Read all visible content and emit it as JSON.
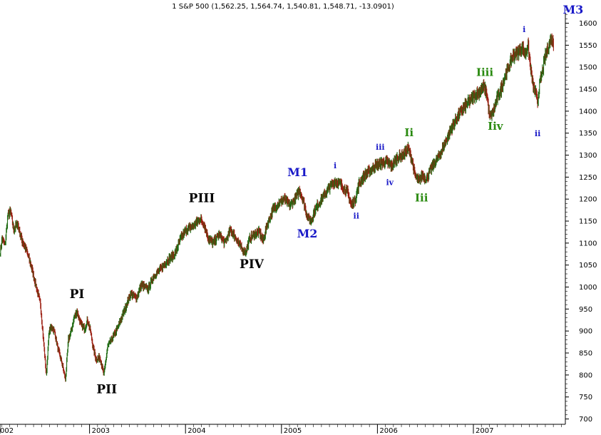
{
  "chart_data": {
    "type": "candlestick",
    "title": "1 S&P 500 (1,562.25, 1,564.74, 1,540.81, 1,548.71, -13.0901)",
    "ylim": [
      690,
      1650
    ],
    "y_ticks": [
      700,
      750,
      800,
      850,
      900,
      950,
      1000,
      1050,
      1100,
      1150,
      1200,
      1250,
      1300,
      1350,
      1400,
      1450,
      1500,
      1550,
      1600
    ],
    "x_ticks": [
      {
        "label": "002",
        "t": 0.0
      },
      {
        "label": "2003",
        "t": 1.0
      },
      {
        "label": "2004",
        "t": 2.0
      },
      {
        "label": "2005",
        "t": 3.0
      },
      {
        "label": "2006",
        "t": 4.0
      },
      {
        "label": "2007",
        "t": 5.0
      }
    ],
    "colors": {
      "up": "#1e6b12",
      "down": "#9b1d10",
      "primary_label": "#000000",
      "major_label": "#1a1ac8",
      "intermediate_label": "#2a8a10",
      "minor_label": "#1a1ac8",
      "grid": "#c8c8c8"
    },
    "series": [
      {
        "t": -0.02,
        "v": 1080
      },
      {
        "t": 0.0,
        "v": 1110
      },
      {
        "t": 0.03,
        "v": 1095
      },
      {
        "t": 0.06,
        "v": 1165
      },
      {
        "t": 0.09,
        "v": 1170
      },
      {
        "t": 0.12,
        "v": 1130
      },
      {
        "t": 0.16,
        "v": 1145
      },
      {
        "t": 0.2,
        "v": 1110
      },
      {
        "t": 0.25,
        "v": 1085
      },
      {
        "t": 0.3,
        "v": 1050
      },
      {
        "t": 0.35,
        "v": 1005
      },
      {
        "t": 0.4,
        "v": 960
      },
      {
        "t": 0.43,
        "v": 880
      },
      {
        "t": 0.46,
        "v": 800
      },
      {
        "t": 0.49,
        "v": 900
      },
      {
        "t": 0.52,
        "v": 910
      },
      {
        "t": 0.55,
        "v": 895
      },
      {
        "t": 0.58,
        "v": 860
      },
      {
        "t": 0.62,
        "v": 830
      },
      {
        "t": 0.66,
        "v": 790
      },
      {
        "t": 0.69,
        "v": 880
      },
      {
        "t": 0.72,
        "v": 900
      },
      {
        "t": 0.75,
        "v": 930
      },
      {
        "t": 0.78,
        "v": 945
      },
      {
        "t": 0.82,
        "v": 915
      },
      {
        "t": 0.86,
        "v": 905
      },
      {
        "t": 0.89,
        "v": 925
      },
      {
        "t": 0.92,
        "v": 900
      },
      {
        "t": 0.95,
        "v": 860
      },
      {
        "t": 0.98,
        "v": 835
      },
      {
        "t": 1.02,
        "v": 840
      },
      {
        "t": 1.06,
        "v": 800
      },
      {
        "t": 1.1,
        "v": 865
      },
      {
        "t": 1.14,
        "v": 880
      },
      {
        "t": 1.2,
        "v": 905
      },
      {
        "t": 1.28,
        "v": 950
      },
      {
        "t": 1.34,
        "v": 985
      },
      {
        "t": 1.4,
        "v": 975
      },
      {
        "t": 1.45,
        "v": 1005
      },
      {
        "t": 1.52,
        "v": 995
      },
      {
        "t": 1.58,
        "v": 1025
      },
      {
        "t": 1.65,
        "v": 1040
      },
      {
        "t": 1.72,
        "v": 1060
      },
      {
        "t": 1.8,
        "v": 1075
      },
      {
        "t": 1.86,
        "v": 1110
      },
      {
        "t": 1.92,
        "v": 1130
      },
      {
        "t": 2.0,
        "v": 1140
      },
      {
        "t": 2.06,
        "v": 1155
      },
      {
        "t": 2.1,
        "v": 1145
      },
      {
        "t": 2.15,
        "v": 1110
      },
      {
        "t": 2.2,
        "v": 1100
      },
      {
        "t": 2.26,
        "v": 1120
      },
      {
        "t": 2.32,
        "v": 1100
      },
      {
        "t": 2.38,
        "v": 1130
      },
      {
        "t": 2.44,
        "v": 1110
      },
      {
        "t": 2.5,
        "v": 1085
      },
      {
        "t": 2.54,
        "v": 1080
      },
      {
        "t": 2.58,
        "v": 1110
      },
      {
        "t": 2.63,
        "v": 1120
      },
      {
        "t": 2.68,
        "v": 1125
      },
      {
        "t": 2.72,
        "v": 1105
      },
      {
        "t": 2.76,
        "v": 1140
      },
      {
        "t": 2.82,
        "v": 1175
      },
      {
        "t": 2.88,
        "v": 1190
      },
      {
        "t": 2.94,
        "v": 1200
      },
      {
        "t": 3.0,
        "v": 1185
      },
      {
        "t": 3.05,
        "v": 1200
      },
      {
        "t": 3.1,
        "v": 1220
      },
      {
        "t": 3.14,
        "v": 1195
      },
      {
        "t": 3.18,
        "v": 1160
      },
      {
        "t": 3.22,
        "v": 1150
      },
      {
        "t": 3.26,
        "v": 1175
      },
      {
        "t": 3.3,
        "v": 1190
      },
      {
        "t": 3.36,
        "v": 1210
      },
      {
        "t": 3.42,
        "v": 1230
      },
      {
        "t": 3.47,
        "v": 1240
      },
      {
        "t": 3.52,
        "v": 1235
      },
      {
        "t": 3.56,
        "v": 1225
      },
      {
        "t": 3.6,
        "v": 1215
      },
      {
        "t": 3.64,
        "v": 1185
      },
      {
        "t": 3.68,
        "v": 1200
      },
      {
        "t": 3.72,
        "v": 1235
      },
      {
        "t": 3.78,
        "v": 1255
      },
      {
        "t": 3.84,
        "v": 1265
      },
      {
        "t": 3.88,
        "v": 1275
      },
      {
        "t": 3.94,
        "v": 1280
      },
      {
        "t": 4.0,
        "v": 1285
      },
      {
        "t": 4.06,
        "v": 1275
      },
      {
        "t": 4.12,
        "v": 1295
      },
      {
        "t": 4.18,
        "v": 1300
      },
      {
        "t": 4.23,
        "v": 1315
      },
      {
        "t": 4.27,
        "v": 1290
      },
      {
        "t": 4.3,
        "v": 1255
      },
      {
        "t": 4.34,
        "v": 1240
      },
      {
        "t": 4.38,
        "v": 1255
      },
      {
        "t": 4.42,
        "v": 1245
      },
      {
        "t": 4.46,
        "v": 1265
      },
      {
        "t": 4.5,
        "v": 1280
      },
      {
        "t": 4.56,
        "v": 1300
      },
      {
        "t": 4.62,
        "v": 1330
      },
      {
        "t": 4.68,
        "v": 1360
      },
      {
        "t": 4.74,
        "v": 1385
      },
      {
        "t": 4.8,
        "v": 1405
      },
      {
        "t": 4.86,
        "v": 1420
      },
      {
        "t": 4.92,
        "v": 1435
      },
      {
        "t": 4.98,
        "v": 1445
      },
      {
        "t": 5.02,
        "v": 1455
      },
      {
        "t": 5.05,
        "v": 1440
      },
      {
        "t": 5.08,
        "v": 1385
      },
      {
        "t": 5.12,
        "v": 1400
      },
      {
        "t": 5.16,
        "v": 1430
      },
      {
        "t": 5.2,
        "v": 1450
      },
      {
        "t": 5.24,
        "v": 1480
      },
      {
        "t": 5.28,
        "v": 1500
      },
      {
        "t": 5.32,
        "v": 1525
      },
      {
        "t": 5.38,
        "v": 1535
      },
      {
        "t": 5.42,
        "v": 1545
      },
      {
        "t": 5.45,
        "v": 1530
      },
      {
        "t": 5.48,
        "v": 1550
      },
      {
        "t": 5.5,
        "v": 1510
      },
      {
        "t": 5.53,
        "v": 1460
      },
      {
        "t": 5.56,
        "v": 1440
      },
      {
        "t": 5.58,
        "v": 1420
      },
      {
        "t": 5.6,
        "v": 1460
      },
      {
        "t": 5.63,
        "v": 1490
      },
      {
        "t": 5.66,
        "v": 1525
      },
      {
        "t": 5.69,
        "v": 1545
      },
      {
        "t": 5.72,
        "v": 1565
      },
      {
        "t": 5.75,
        "v": 1552
      }
    ],
    "annotations": [
      {
        "text": "PI",
        "t": 0.78,
        "v": 975,
        "level": "primary"
      },
      {
        "text": "PII",
        "t": 1.09,
        "v": 758,
        "level": "primary"
      },
      {
        "text": "PIII",
        "t": 2.08,
        "v": 1193,
        "level": "primary"
      },
      {
        "text": "PIV",
        "t": 2.6,
        "v": 1043,
        "level": "primary"
      },
      {
        "text": "M1",
        "t": 3.08,
        "v": 1252,
        "level": "major"
      },
      {
        "text": "M2",
        "t": 3.18,
        "v": 1113,
        "level": "major"
      },
      {
        "text": "M3",
        "t": 5.95,
        "v": 1622,
        "level": "major"
      },
      {
        "text": "i",
        "t": 3.47,
        "v": 1270,
        "level": "minor"
      },
      {
        "text": "ii",
        "t": 3.69,
        "v": 1156,
        "level": "minor"
      },
      {
        "text": "iii",
        "t": 3.94,
        "v": 1312,
        "level": "minor"
      },
      {
        "text": "iv",
        "t": 4.04,
        "v": 1232,
        "level": "minor"
      },
      {
        "text": "i",
        "t": 5.44,
        "v": 1580,
        "level": "minor"
      },
      {
        "text": "ii",
        "t": 5.58,
        "v": 1343,
        "level": "minor"
      },
      {
        "text": "Ii",
        "t": 4.24,
        "v": 1343,
        "level": "intermediate"
      },
      {
        "text": "Iii",
        "t": 4.37,
        "v": 1195,
        "level": "intermediate"
      },
      {
        "text": "Iiii",
        "t": 5.03,
        "v": 1480,
        "level": "intermediate"
      },
      {
        "text": "Iiv",
        "t": 5.14,
        "v": 1358,
        "level": "intermediate"
      }
    ]
  }
}
